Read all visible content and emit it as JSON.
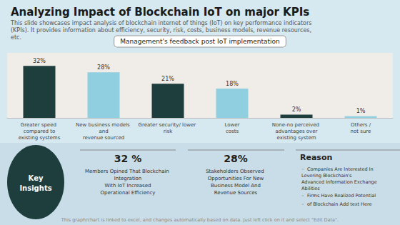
{
  "chart_data": {
    "type": "bar",
    "title": "Analyzing Impact of Blockchain IoT on major KPIs",
    "subtitle": "This slide showcases impact analysis of blockchain internet of things (IoT) on key performance indicators (KPIs). It provides information about efficiency, security, risk, costs, business models, revenue resources, etc.",
    "categories": [
      "Greater speed compared to\nexisting systems",
      "New business models and\nrevenue sourced",
      "Greater security/ lower risk",
      "Lower\ncosts",
      "None-no perceived advantages over\nexisting system",
      "Others /\nnot sure"
    ],
    "values": [
      32,
      28,
      21,
      18,
      2,
      1
    ],
    "value_labels": [
      "32%",
      "28%",
      "21%",
      "18%",
      "2%",
      "1%"
    ],
    "colors": [
      "#1e3d3d",
      "#8fcfe0",
      "#1e3d3d",
      "#8fcfe0",
      "#1e3d3d",
      "#8fcfe0"
    ],
    "ylim": [
      0,
      40
    ],
    "grid": false,
    "data_labels": true,
    "tick_labels": "x",
    "annotations": [
      "Management's feedback post IoT implementation",
      "Key\nInsights",
      "32 %",
      "Members Opined That Blockchain Integration\nWith IoT Increased\nOperational Efficiency",
      "28%",
      "Stakeholders Observed Opportunities For New\nBusiness Model And\nRevenue Sources",
      "Reason",
      "◦  Companies Are Interested In Levering Blockchain's\nAdvanced Information Exchange Abilities",
      "◦  Firms Have Realized Potential",
      "◦  of Blockchain Add text Here",
      "This graph/chart is linked to excel, and changes automatically based on data. Just left click on it and select \"Edit Data\"."
    ]
  }
}
